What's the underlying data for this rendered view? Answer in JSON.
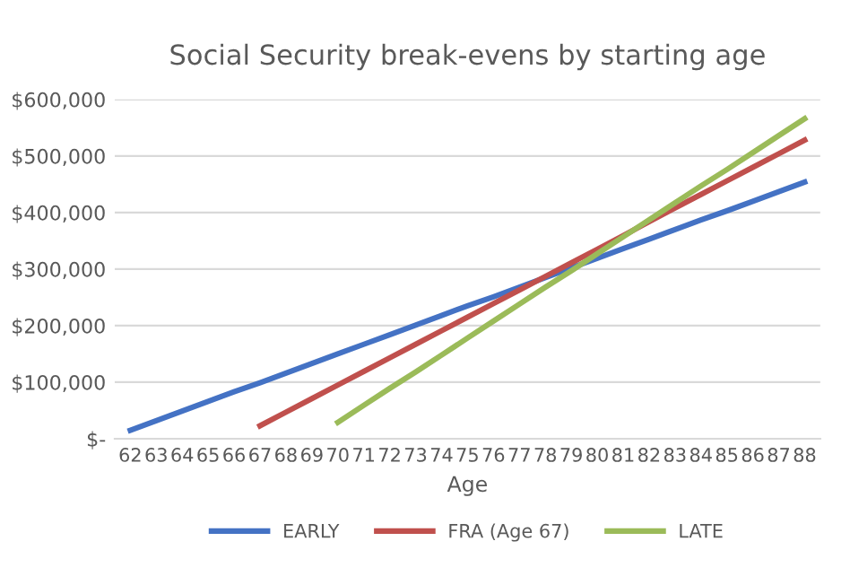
{
  "chart_data": {
    "type": "line",
    "title": "Social Security break-evens by starting age",
    "xlabel": "Age",
    "categories": [
      "62",
      "63",
      "64",
      "65",
      "66",
      "67",
      "68",
      "69",
      "70",
      "71",
      "72",
      "73",
      "74",
      "75",
      "76",
      "77",
      "78",
      "79",
      "80",
      "81",
      "82",
      "83",
      "84",
      "85",
      "86",
      "87",
      "88"
    ],
    "series": [
      {
        "name": "EARLY",
        "color": "#4472c4",
        "values": [
          15000,
          32000,
          49000,
          66000,
          83000,
          99000,
          116000,
          133000,
          150000,
          167000,
          184000,
          201000,
          218000,
          235000,
          251000,
          268000,
          285000,
          302000,
          319000,
          336000,
          353000,
          370000,
          387000,
          403000,
          420000,
          437000,
          454000
        ]
      },
      {
        "name": "FRA (Age 67)",
        "color": "#c0504d",
        "values": [
          null,
          null,
          null,
          null,
          null,
          23000,
          47000,
          71000,
          95000,
          119000,
          143000,
          167000,
          191000,
          215000,
          239000,
          263000,
          287000,
          311000,
          335000,
          359000,
          384000,
          408000,
          432000,
          456000,
          480000,
          504000,
          528000
        ]
      },
      {
        "name": "LATE",
        "color": "#9bbb59",
        "values": [
          null,
          null,
          null,
          null,
          null,
          null,
          null,
          null,
          29000,
          59000,
          89000,
          118000,
          148000,
          178000,
          208000,
          238000,
          268000,
          297000,
          327000,
          357000,
          387000,
          417000,
          447000,
          476000,
          506000,
          536000,
          566000
        ]
      }
    ],
    "ylim": [
      0,
      600000
    ],
    "yticks": [
      {
        "value": 0,
        "label": "$-"
      },
      {
        "value": 100000,
        "label": "$100,000"
      },
      {
        "value": 200000,
        "label": "$200,000"
      },
      {
        "value": 300000,
        "label": "$300,000"
      },
      {
        "value": 400000,
        "label": "$400,000"
      },
      {
        "value": 500000,
        "label": "$500,000"
      },
      {
        "value": 600000,
        "label": "$600,000"
      }
    ],
    "grid": "y",
    "legend": "bottom",
    "marker": "none",
    "line_style": "solid"
  }
}
